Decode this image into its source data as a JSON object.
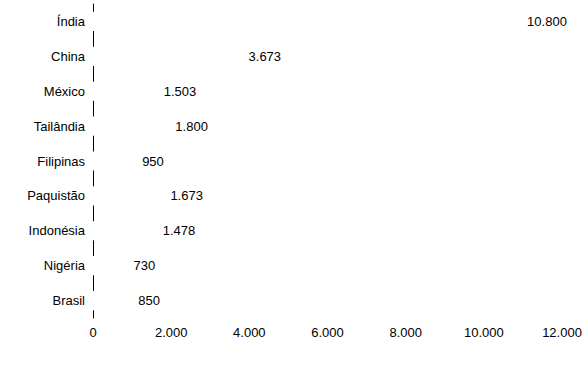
{
  "chart_data": {
    "type": "bar",
    "orientation": "horizontal",
    "categories": [
      "Índia",
      "China",
      "México",
      "Tailândia",
      "Filipinas",
      "Paquistão",
      "Indonésia",
      "Nigéria",
      "Brasil"
    ],
    "values": [
      10800,
      3673,
      1503,
      1800,
      950,
      1673,
      1478,
      730,
      850
    ],
    "value_labels": [
      "10.800",
      "3.673",
      "1.503",
      "1.800",
      "950",
      "1.673",
      "1.478",
      "730",
      "850"
    ],
    "color": "#ffffff",
    "xlim": [
      0,
      12000
    ],
    "xticks": [
      0,
      {
        "value": 2000,
        "label": "2.000"
      },
      {
        "value": 4000,
        "label": "4.000"
      },
      {
        "value": 6000,
        "label": "6.000"
      },
      {
        "value": 8000,
        "label": "8.000"
      },
      {
        "value": 10000,
        "label": "10.000"
      },
      {
        "value": 12000,
        "label": "12.000"
      }
    ],
    "grid": false,
    "data_labels": true
  }
}
